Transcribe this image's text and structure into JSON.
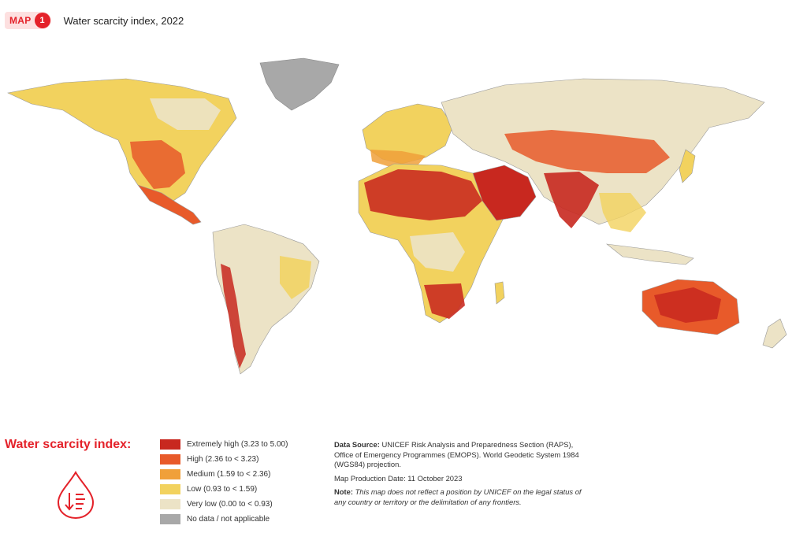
{
  "header": {
    "badge_word": "MAP",
    "badge_number": "1",
    "title": "Water scarcity index, 2022"
  },
  "legend": {
    "title": "Water scarcity index:",
    "icon": "water-drop-scarcity-icon",
    "items": [
      {
        "label": "Extremely high (3.23 to 5.00)",
        "color": "#c8281f"
      },
      {
        "label": "High (2.36 to < 3.23)",
        "color": "#e85a2a"
      },
      {
        "label": "Medium (1.59 to < 2.36)",
        "color": "#f0a03a"
      },
      {
        "label": "Low (0.93 to < 1.59)",
        "color": "#f2d25e"
      },
      {
        "label": "Very low (0.00 to < 0.93)",
        "color": "#ece3c6"
      },
      {
        "label": "No data / not applicable",
        "color": "#a8a8a8"
      }
    ]
  },
  "source": {
    "data_source_label": "Data Source:",
    "data_source_text": "UNICEF Risk Analysis and Preparedness Section (RAPS), Office of Emergency Programmes (EMOPS). World Geodetic System 1984 (WGS84) projection.",
    "production_date": "Map Production Date: 11 October 2023",
    "note_label": "Note:",
    "note_text": "This map does not reflect a position by UNICEF on the legal status of any country or territory or the delimitation of any frontiers."
  },
  "map": {
    "type": "choropleth",
    "regions": [
      {
        "name": "Greenland",
        "class": "No data / not applicable"
      },
      {
        "name": "Australia",
        "class": "Extremely high (3.23 to 5.00)"
      },
      {
        "name": "Sahara",
        "class": "Extremely high (3.23 to 5.00)"
      },
      {
        "name": "Arabian Peninsula",
        "class": "Extremely high (3.23 to 5.00)"
      },
      {
        "name": "India",
        "class": "Extremely high (3.23 to 5.00)"
      },
      {
        "name": "Southern Africa",
        "class": "Extremely high (3.23 to 5.00)"
      },
      {
        "name": "Amazon",
        "class": "Very low (0.00 to < 0.93)"
      },
      {
        "name": "Siberia",
        "class": "Very low (0.00 to < 0.93)"
      }
    ]
  }
}
